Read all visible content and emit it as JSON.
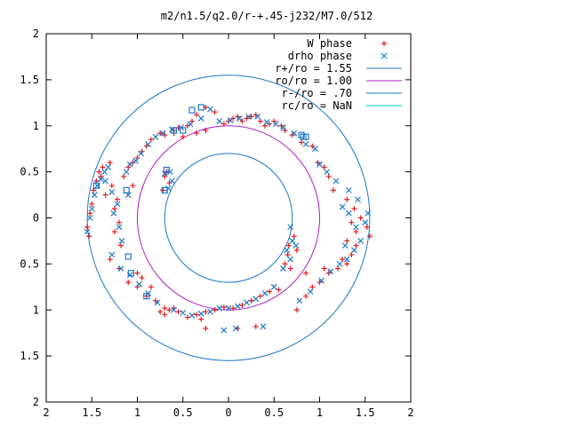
{
  "chart_data": {
    "type": "scatter",
    "title": "m2/n1.5/q2.0/r-+.45-j232/M7.0/512",
    "xlim": [
      -2,
      2
    ],
    "ylim": [
      -2,
      2
    ],
    "x_tick_values": [
      -2,
      -1.5,
      -1,
      -0.5,
      0,
      0.5,
      1,
      1.5,
      2
    ],
    "x_tick_labels": [
      "2",
      "1.5",
      "1",
      "0.5",
      "0",
      "0.5",
      "1",
      "1.5",
      "2"
    ],
    "y_tick_values": [
      2,
      1.5,
      1,
      0.5,
      0,
      -0.5,
      -1,
      -1.5,
      -2
    ],
    "y_tick_labels": [
      "2",
      "1.5",
      "1",
      "0.5",
      "0",
      "0.5",
      "1",
      "1.5",
      "2"
    ],
    "grid": false,
    "legend_position": "top-right",
    "colors": {
      "w_phase": "#e41a1c",
      "drho_phase": "#1f78c8",
      "r_plus": "#1f78c8",
      "ro": "#b01fc8",
      "r_minus": "#1f78c8",
      "rc": "#00c8c8"
    },
    "circles": [
      {
        "label": "r+/ro = 1.55",
        "radius": 1.55,
        "color": "#1f78c8"
      },
      {
        "label": "ro/ro = 1.00",
        "radius": 1.0,
        "color": "#b01fc8"
      },
      {
        "label": "r-/ro = .70",
        "radius": 0.7,
        "color": "#1f78c8"
      },
      {
        "label": "rc/ro = NaN",
        "radius": null,
        "color": "#00c8c8"
      }
    ],
    "series": [
      {
        "name": "W phase",
        "marker": "plus",
        "color": "#e41a1c",
        "points": [
          [
            -1.55,
            -0.1
          ],
          [
            -1.53,
            -0.2
          ],
          [
            -1.52,
            0.05
          ],
          [
            -1.5,
            0.15
          ],
          [
            -1.48,
            0.3
          ],
          [
            -1.45,
            0.4
          ],
          [
            -1.42,
            0.5
          ],
          [
            -1.4,
            0.45
          ],
          [
            -1.38,
            0.55
          ],
          [
            -1.35,
            0.25
          ],
          [
            -1.3,
            0.6
          ],
          [
            -1.28,
            0.35
          ],
          [
            -1.25,
            0.1
          ],
          [
            -1.22,
            0.2
          ],
          [
            -1.2,
            -0.05
          ],
          [
            -1.18,
            -0.3
          ],
          [
            -1.25,
            -0.15
          ],
          [
            -1.15,
            0.45
          ],
          [
            -1.1,
            0.55
          ],
          [
            -1.05,
            0.6
          ],
          [
            -1.0,
            0.65
          ],
          [
            -0.95,
            0.72
          ],
          [
            -0.9,
            0.78
          ],
          [
            -0.85,
            0.85
          ],
          [
            -0.75,
            0.92
          ],
          [
            -0.7,
            0.9
          ],
          [
            -0.6,
            0.95
          ],
          [
            -0.55,
            0.98
          ],
          [
            -0.45,
            1.0
          ],
          [
            -0.4,
            1.05
          ],
          [
            -0.35,
            1.12
          ],
          [
            -0.25,
            1.2
          ],
          [
            -0.15,
            1.15
          ],
          [
            -0.05,
            1.02
          ],
          [
            0.0,
            1.05
          ],
          [
            0.05,
            1.08
          ],
          [
            0.1,
            1.1
          ],
          [
            0.15,
            1.05
          ],
          [
            0.2,
            1.08
          ],
          [
            0.25,
            1.1
          ],
          [
            0.3,
            1.12
          ],
          [
            0.35,
            1.05
          ],
          [
            0.4,
            1.0
          ],
          [
            0.45,
            1.02
          ],
          [
            0.5,
            1.05
          ],
          [
            0.58,
            1.0
          ],
          [
            0.62,
            0.95
          ],
          [
            0.7,
            0.9
          ],
          [
            0.8,
            0.82
          ],
          [
            0.92,
            0.78
          ],
          [
            0.98,
            0.6
          ],
          [
            1.05,
            0.55
          ],
          [
            1.1,
            0.45
          ],
          [
            1.15,
            0.3
          ],
          [
            1.3,
            0.2
          ],
          [
            1.38,
            0.1
          ],
          [
            1.45,
            0.0
          ],
          [
            1.52,
            -0.1
          ],
          [
            1.55,
            -0.2
          ],
          [
            1.4,
            -0.3
          ],
          [
            1.35,
            -0.4
          ],
          [
            1.3,
            -0.5
          ],
          [
            1.25,
            -0.45
          ],
          [
            1.2,
            -0.55
          ],
          [
            1.1,
            -0.6
          ],
          [
            1.0,
            -0.7
          ],
          [
            0.92,
            -0.75
          ],
          [
            0.85,
            -0.85
          ],
          [
            0.75,
            -1.0
          ],
          [
            0.68,
            -0.55
          ],
          [
            0.65,
            -0.4
          ],
          [
            0.62,
            -0.5
          ],
          [
            0.55,
            -0.78
          ],
          [
            0.45,
            -0.8
          ],
          [
            0.35,
            -0.85
          ],
          [
            0.25,
            -0.9
          ],
          [
            0.15,
            -0.95
          ],
          [
            0.05,
            -0.98
          ],
          [
            -0.05,
            -0.97
          ],
          [
            -0.15,
            -1.0
          ],
          [
            -0.25,
            -1.02
          ],
          [
            -0.35,
            -1.05
          ],
          [
            -0.45,
            -1.08
          ],
          [
            -0.55,
            -1.02
          ],
          [
            -0.65,
            -1.0
          ],
          [
            -0.7,
            -1.05
          ],
          [
            -0.8,
            -0.9
          ],
          [
            -0.9,
            -0.85
          ],
          [
            -1.0,
            -0.75
          ],
          [
            -1.1,
            -0.7
          ],
          [
            -1.2,
            -0.55
          ],
          [
            -1.3,
            -0.45
          ],
          [
            -1.0,
            -0.6
          ],
          [
            -0.95,
            -0.65
          ],
          [
            -0.85,
            -0.75
          ],
          [
            -0.75,
            -1.02
          ],
          [
            -0.6,
            -0.98
          ],
          [
            -0.3,
            -1.1
          ],
          [
            -0.25,
            -1.2
          ],
          [
            0.1,
            -1.2
          ],
          [
            0.3,
            -1.18
          ],
          [
            0.25,
            -0.9
          ],
          [
            -0.7,
            -0.98
          ],
          [
            -0.65,
            0.38
          ],
          [
            -0.68,
            0.5
          ],
          [
            -0.72,
            0.3
          ],
          [
            -0.7,
            0.45
          ],
          [
            -0.6,
            0.92
          ],
          [
            -0.5,
            0.88
          ],
          [
            -0.35,
            0.92
          ],
          [
            -0.25,
            0.95
          ],
          [
            -1.05,
            0.35
          ],
          [
            0.72,
            -0.2
          ],
          [
            0.75,
            -0.35
          ],
          [
            0.66,
            -0.3
          ],
          [
            0.85,
            -0.6
          ],
          [
            1.05,
            -0.55
          ],
          [
            1.3,
            -0.25
          ],
          [
            1.35,
            -0.05
          ],
          [
            1.4,
            -0.15
          ]
        ]
      },
      {
        "name": "drho phase",
        "marker": "x",
        "color": "#1f78c8",
        "points": [
          [
            -1.55,
            -0.15
          ],
          [
            -1.52,
            0.0
          ],
          [
            -1.5,
            0.1
          ],
          [
            -1.47,
            0.25
          ],
          [
            -1.44,
            0.35
          ],
          [
            -1.4,
            0.42
          ],
          [
            -1.36,
            0.5
          ],
          [
            -1.32,
            0.55
          ],
          [
            -1.28,
            0.28
          ],
          [
            -1.26,
            0.05
          ],
          [
            -1.22,
            0.15
          ],
          [
            -1.2,
            -0.1
          ],
          [
            -1.17,
            -0.25
          ],
          [
            -1.12,
            0.5
          ],
          [
            -1.08,
            0.58
          ],
          [
            -1.02,
            0.62
          ],
          [
            -0.96,
            0.7
          ],
          [
            -0.88,
            0.8
          ],
          [
            -0.8,
            0.88
          ],
          [
            -0.72,
            0.92
          ],
          [
            -0.62,
            0.96
          ],
          [
            -0.52,
            0.98
          ],
          [
            -0.42,
            1.02
          ],
          [
            -0.3,
            1.08
          ],
          [
            -0.2,
            1.18
          ],
          [
            -0.1,
            1.05
          ],
          [
            0.02,
            1.06
          ],
          [
            0.12,
            1.08
          ],
          [
            0.22,
            1.1
          ],
          [
            0.32,
            1.1
          ],
          [
            0.42,
            1.04
          ],
          [
            0.52,
            1.02
          ],
          [
            0.6,
            0.98
          ],
          [
            0.72,
            0.92
          ],
          [
            0.85,
            0.8
          ],
          [
            0.95,
            0.75
          ],
          [
            1.0,
            0.58
          ],
          [
            1.08,
            0.5
          ],
          [
            1.18,
            0.4
          ],
          [
            1.25,
            0.12
          ],
          [
            1.32,
            0.05
          ],
          [
            1.42,
            0.2
          ],
          [
            1.5,
            -0.05
          ],
          [
            1.53,
            0.05
          ],
          [
            1.45,
            -0.25
          ],
          [
            1.38,
            -0.35
          ],
          [
            1.3,
            -0.45
          ],
          [
            1.22,
            -0.5
          ],
          [
            1.12,
            -0.58
          ],
          [
            1.02,
            -0.68
          ],
          [
            0.9,
            -0.8
          ],
          [
            0.78,
            -0.9
          ],
          [
            0.68,
            -0.45
          ],
          [
            0.64,
            -0.35
          ],
          [
            0.6,
            -0.55
          ],
          [
            0.5,
            -0.75
          ],
          [
            0.4,
            -0.82
          ],
          [
            0.3,
            -0.88
          ],
          [
            0.2,
            -0.92
          ],
          [
            0.1,
            -0.96
          ],
          [
            0.0,
            -0.98
          ],
          [
            -0.1,
            -0.98
          ],
          [
            -0.2,
            -1.02
          ],
          [
            -0.3,
            -1.04
          ],
          [
            -0.4,
            -1.06
          ],
          [
            -0.5,
            -1.03
          ],
          [
            -0.6,
            -1.0
          ],
          [
            -0.78,
            -0.92
          ],
          [
            -0.88,
            -0.82
          ],
          [
            -0.98,
            -0.72
          ],
          [
            -1.08,
            -0.62
          ],
          [
            -1.18,
            -0.55
          ],
          [
            -1.28,
            -0.4
          ],
          [
            -0.05,
            -1.22
          ],
          [
            0.08,
            -1.2
          ],
          [
            0.38,
            -1.18
          ],
          [
            -0.62,
            0.4
          ],
          [
            -0.66,
            0.32
          ],
          [
            -0.7,
            0.48
          ],
          [
            -0.64,
            0.5
          ],
          [
            -1.35,
            0.4
          ],
          [
            -1.1,
            0.25
          ],
          [
            0.7,
            -0.25
          ],
          [
            0.74,
            -0.3
          ],
          [
            0.68,
            -0.1
          ],
          [
            1.28,
            -0.3
          ],
          [
            1.4,
            -0.1
          ],
          [
            1.32,
            0.3
          ]
        ]
      },
      {
        "name": "",
        "marker": "square",
        "color": "#1f78c8",
        "points": [
          [
            -1.1,
            -0.42
          ],
          [
            -1.07,
            -0.6
          ],
          [
            -0.9,
            -0.85
          ],
          [
            -0.4,
            1.17
          ],
          [
            -0.3,
            1.2
          ],
          [
            0.8,
            0.9
          ],
          [
            0.82,
            0.88
          ],
          [
            -0.6,
            0.95
          ],
          [
            -0.5,
            0.95
          ],
          [
            -0.7,
            0.3
          ],
          [
            -0.68,
            0.52
          ],
          [
            -1.45,
            0.35
          ],
          [
            0.85,
            0.88
          ],
          [
            -1.12,
            0.3
          ]
        ]
      }
    ]
  }
}
